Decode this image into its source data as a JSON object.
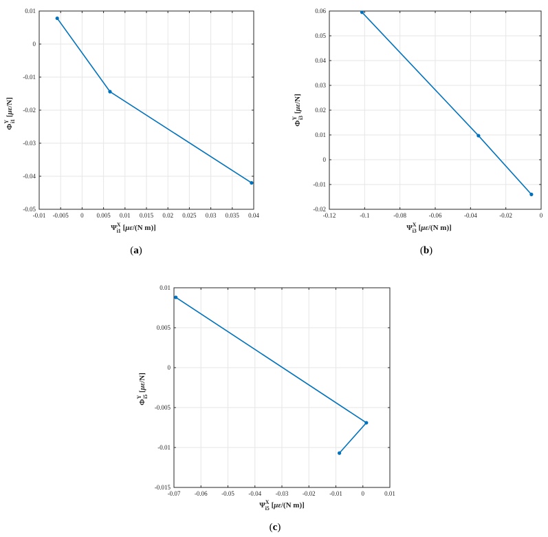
{
  "series_color": "#0072bd",
  "panels": [
    {
      "caption_letter": "a",
      "xlabel_greek": "Ψ",
      "xlabel_sub": "i1",
      "xlabel_sup": "X",
      "xlabel_unit_pre": " [",
      "xlabel_unit_it": "με",
      "xlabel_unit_post": "/(N m)]",
      "ylabel_greek": "Φ",
      "ylabel_sub": "i1",
      "ylabel_sup": "Y",
      "ylabel_unit_pre": " [",
      "ylabel_unit_it": "με",
      "ylabel_unit_post": "/N]"
    },
    {
      "caption_letter": "b",
      "xlabel_greek": "Ψ",
      "xlabel_sub": "i3",
      "xlabel_sup": "X",
      "xlabel_unit_pre": " [",
      "xlabel_unit_it": "με",
      "xlabel_unit_post": "/(N m)]",
      "ylabel_greek": "Φ",
      "ylabel_sub": "i3",
      "ylabel_sup": "Y",
      "ylabel_unit_pre": " [",
      "ylabel_unit_it": "με",
      "ylabel_unit_post": "/N]"
    },
    {
      "caption_letter": "c",
      "xlabel_greek": "Ψ",
      "xlabel_sub": "i5",
      "xlabel_sup": "X",
      "xlabel_unit_pre": " [",
      "xlabel_unit_it": "με",
      "xlabel_unit_post": "/(N m)]",
      "ylabel_greek": "Φ",
      "ylabel_sub": "i5",
      "ylabel_sup": "Y",
      "ylabel_unit_pre": " [",
      "ylabel_unit_it": "με",
      "ylabel_unit_post": "/N]"
    }
  ],
  "chart_data": [
    {
      "type": "line",
      "x": [
        -0.0058,
        0.0065,
        0.0395
      ],
      "y": [
        0.0078,
        -0.0144,
        -0.042
      ],
      "xlim": [
        -0.01,
        0.04
      ],
      "ylim": [
        -0.05,
        0.01
      ],
      "xticks": [
        -0.01,
        -0.005,
        0,
        0.005,
        0.01,
        0.015,
        0.02,
        0.025,
        0.03,
        0.035,
        0.04
      ],
      "xtick_labels": [
        "-0.01",
        "-0.005",
        "0",
        "0.005",
        "0.01",
        "0.015",
        "0.02",
        "0.025",
        "0.03",
        "0.035",
        "0.04"
      ],
      "yticks": [
        -0.05,
        -0.04,
        -0.03,
        -0.02,
        -0.01,
        0,
        0.01
      ],
      "ytick_labels": [
        "-0.05",
        "-0.04",
        "-0.03",
        "-0.02",
        "-0.01",
        "0",
        "0.01"
      ],
      "grid": true,
      "markers": true
    },
    {
      "type": "line",
      "x": [
        -0.1015,
        -0.0355,
        -0.0055
      ],
      "y": [
        0.0595,
        0.0097,
        -0.014
      ],
      "xlim": [
        -0.12,
        0
      ],
      "ylim": [
        -0.02,
        0.06
      ],
      "xticks": [
        -0.12,
        -0.1,
        -0.08,
        -0.06,
        -0.04,
        -0.02,
        0
      ],
      "xtick_labels": [
        "-0.12",
        "-0.1",
        "-0.08",
        "-0.06",
        "-0.04",
        "-0.02",
        "0"
      ],
      "yticks": [
        -0.02,
        -0.01,
        0,
        0.01,
        0.02,
        0.03,
        0.04,
        0.05,
        0.06
      ],
      "ytick_labels": [
        "-0.02",
        "-0.01",
        "0",
        "0.01",
        "0.02",
        "0.03",
        "0.04",
        "0.05",
        "0.06"
      ],
      "grid": true,
      "markers": true
    },
    {
      "type": "line",
      "x": [
        -0.0693,
        0.0013,
        -0.0087
      ],
      "y": [
        0.0088,
        -0.0069,
        -0.0107
      ],
      "xlim": [
        -0.07,
        0.01
      ],
      "ylim": [
        -0.015,
        0.01
      ],
      "xticks": [
        -0.07,
        -0.06,
        -0.05,
        -0.04,
        -0.03,
        -0.02,
        -0.01,
        0,
        0.01
      ],
      "xtick_labels": [
        "-0.07",
        "-0.06",
        "-0.05",
        "-0.04",
        "-0.03",
        "-0.02",
        "-0.01",
        "0",
        "0.01"
      ],
      "yticks": [
        -0.015,
        -0.01,
        -0.005,
        0,
        0.005,
        0.01
      ],
      "ytick_labels": [
        "-0.015",
        "-0.01",
        "-0.005",
        "0",
        "0.005",
        "0.01"
      ],
      "grid": true,
      "markers": true
    }
  ]
}
